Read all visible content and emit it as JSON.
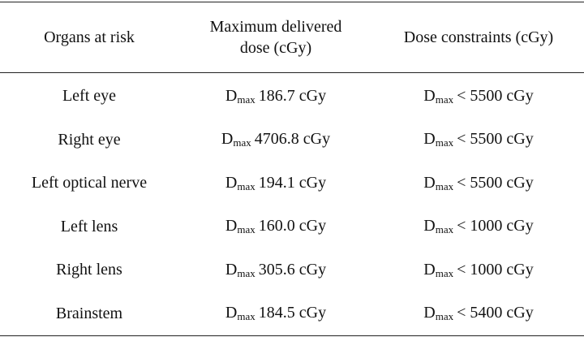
{
  "table": {
    "columns": [
      "Organs at risk",
      "Maximum delivered dose (cGy)",
      "Dose constraints (cGy)"
    ],
    "rows": [
      [
        "Left eye",
        {
          "symbol": "D",
          "sub": "max",
          "value": "186.7 cGy"
        },
        {
          "symbol": "D",
          "sub": "max",
          "value": "< 5500 cGy"
        }
      ],
      [
        "Right eye",
        {
          "symbol": "D",
          "sub": "max",
          "value": "4706.8 cGy"
        },
        {
          "symbol": "D",
          "sub": "max",
          "value": "< 5500 cGy"
        }
      ],
      [
        "Left optical nerve",
        {
          "symbol": "D",
          "sub": "max",
          "value": "194.1 cGy"
        },
        {
          "symbol": "D",
          "sub": "max",
          "value": "< 5500 cGy"
        }
      ],
      [
        "Left lens",
        {
          "symbol": "D",
          "sub": "max",
          "value": "160.0 cGy"
        },
        {
          "symbol": "D",
          "sub": "max",
          "value": "< 1000 cGy"
        }
      ],
      [
        "Right lens",
        {
          "symbol": "D",
          "sub": "max",
          "value": "305.6 cGy"
        },
        {
          "symbol": "D",
          "sub": "max",
          "value": "< 1000 cGy"
        }
      ],
      [
        "Brainstem",
        {
          "symbol": "D",
          "sub": "max",
          "value": "184.5 cGy"
        },
        {
          "symbol": "D",
          "sub": "max",
          "value": "< 5400 cGy"
        }
      ]
    ]
  }
}
